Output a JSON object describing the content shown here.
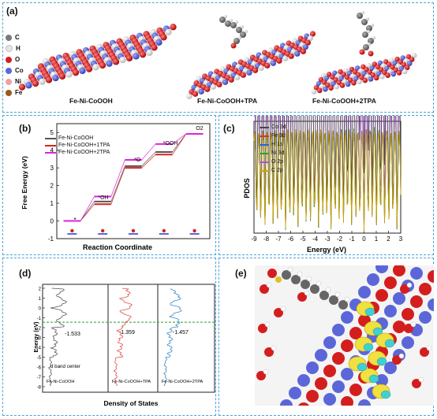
{
  "panel_a": {
    "label": "(a)",
    "legend": [
      {
        "symbol": "C",
        "color": "#7a7a7a"
      },
      {
        "symbol": "H",
        "color": "#e6e6e6"
      },
      {
        "symbol": "O",
        "color": "#d41e1e"
      },
      {
        "symbol": "Co",
        "color": "#5b67d8"
      },
      {
        "symbol": "Ni",
        "color": "#f0a0a0"
      },
      {
        "symbol": "Fe",
        "color": "#9b5a1a"
      }
    ],
    "captions": [
      "Fe-Ni-CoOOH",
      "Fe-Ni-CoOOH+TPA",
      "Fe-Ni-CoOOH+2TPA"
    ]
  },
  "panel_b": {
    "label": "(b)",
    "xlabel": "Reaction Coordinate",
    "ylabel": "Free Energy (eV)",
    "legend": [
      {
        "name": "Fe-Ni-CoOOH",
        "color": "#555555"
      },
      {
        "name": "Fe-Ni-CoOOH+1TPA",
        "color": "#d42020"
      },
      {
        "name": "Fe-Ni-CoOOH+2TPA",
        "color": "#e020e0"
      }
    ],
    "steps": [
      "*",
      "*OH",
      "*O",
      "*OOH",
      "O2"
    ],
    "step_subscript": "2"
  },
  "panel_c": {
    "label": "(c)",
    "ylabel": "PDOS",
    "xlabel": "Energy (eV)",
    "legend": [
      {
        "name": "Co 3d",
        "color": "#444444"
      },
      {
        "name": "Fe 3d",
        "color": "#e03030"
      },
      {
        "name": "H 1s",
        "color": "#3060d0"
      },
      {
        "name": "Ni 3d",
        "color": "#30a030"
      },
      {
        "name": "O 2p",
        "color": "#b050e0"
      },
      {
        "name": "C 2p",
        "color": "#d0a000"
      }
    ]
  },
  "panel_d": {
    "label": "(d)",
    "ylabel": "Energy (eV)",
    "xlabel": "Density of States",
    "annotation": "d band center",
    "subpanels": [
      {
        "name": "Fe-Ni-CoOOH",
        "center": "-1.533",
        "color": "#555555"
      },
      {
        "name": "Fe-Ni-CoOOH+TPA",
        "center": "-1.359",
        "color": "#e05050"
      },
      {
        "name": "Fe-Ni-CoOOH+2TPA",
        "center": "-1.457",
        "color": "#3a8ac8"
      }
    ]
  },
  "panel_e": {
    "label": "(e)"
  },
  "chart_data": [
    {
      "type": "line",
      "panel": "b",
      "xlabel": "Reaction Coordinate",
      "ylabel": "Free Energy (eV)",
      "ylim": [
        -1,
        5.5
      ],
      "yticks": [
        -1,
        0,
        1,
        2,
        3,
        4,
        5
      ],
      "categories": [
        "*",
        "*OH",
        "*O",
        "*OOH",
        "O2"
      ],
      "series": [
        {
          "name": "Fe-Ni-CoOOH",
          "values": [
            0,
            1.1,
            3.1,
            3.9,
            4.92
          ]
        },
        {
          "name": "Fe-Ni-CoOOH+1TPA",
          "values": [
            0,
            0.95,
            3.0,
            3.75,
            4.92
          ]
        },
        {
          "name": "Fe-Ni-CoOOH+2TPA",
          "values": [
            0,
            1.38,
            3.45,
            4.35,
            4.92
          ]
        }
      ]
    },
    {
      "type": "line",
      "panel": "c",
      "ylabel": "PDOS",
      "xlabel": "Energy (eV)",
      "xlim": [
        -9,
        3
      ],
      "xticks": [
        -9,
        -8,
        -7,
        -6,
        -5,
        -4,
        -3,
        -2,
        -1,
        0,
        1,
        2,
        3
      ]
    },
    {
      "type": "line",
      "panel": "d",
      "ylabel": "Energy (eV)",
      "xlabel": "Density of States",
      "ylim": [
        -8,
        2
      ],
      "yticks": [
        2,
        1,
        0,
        -1,
        -2,
        -3,
        -4,
        -5,
        -6,
        -7,
        -8
      ],
      "d_band_centers": [
        -1.533,
        -1.359,
        -1.457
      ]
    }
  ]
}
